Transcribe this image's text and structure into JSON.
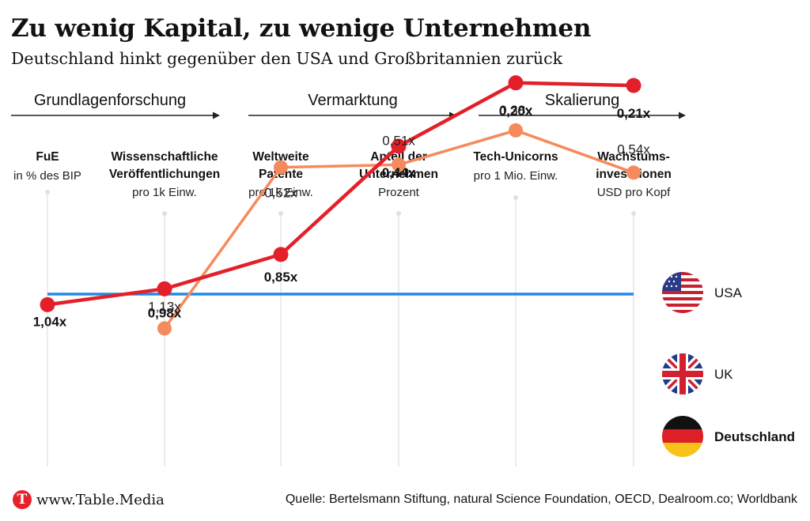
{
  "header": {
    "title": "Zu wenig Kapital, zu wenige Unternehmen",
    "subtitle": "Deutschland hinkt gegenüber den USA und Großbritannien zurück"
  },
  "stages": [
    "Grundlagenforschung",
    "Vermarktung",
    "Skalierung"
  ],
  "chart_data": {
    "type": "line",
    "title": "Zu wenig Kapital, zu wenige Unternehmen",
    "subtitle": "Deutschland hinkt gegenüber den USA und Großbritannien zurück",
    "categories": [
      {
        "name": "FuE",
        "unit": "in % des BIP"
      },
      {
        "name": "Wissenschaftliche Veröffentlichungen",
        "name_lines": [
          "Wissenschaftliche",
          "Veröffentlichungen"
        ],
        "unit": "pro 1k Einw."
      },
      {
        "name": "Weltweite Patente",
        "name_lines": [
          "Weltweite",
          "Patente"
        ],
        "unit": "pro 1k Einw."
      },
      {
        "name": "Anteil der Unternehmen",
        "name_lines": [
          "Anteil der",
          "Unternehmen"
        ],
        "unit": "Prozent"
      },
      {
        "name": "Tech-Unicorns",
        "unit": "pro 1 Mio. Einw."
      },
      {
        "name": "Wachstums-investitionen",
        "name_lines": [
          "Wachstums-",
          "investitionen"
        ],
        "unit": "USD pro Kopf"
      }
    ],
    "baseline": "USA = 1",
    "series": [
      {
        "name": "USA",
        "color": "#2189e6",
        "values": [
          1,
          1,
          1,
          1,
          1,
          1
        ],
        "labels": [
          "",
          "",
          "",
          "",
          "",
          ""
        ]
      },
      {
        "name": "UK",
        "color": "#f58b5c",
        "values": [
          null,
          1.13,
          0.52,
          0.51,
          0.38,
          0.54
        ],
        "labels": [
          "",
          "1,13x",
          "0,52x",
          "0,51x",
          "0,38x",
          "0,54x"
        ]
      },
      {
        "name": "Deutschland",
        "color": "#e3202a",
        "values": [
          1.04,
          0.98,
          0.85,
          0.44,
          0.2,
          0.21
        ],
        "labels": [
          "1,04x",
          "0,98x",
          "0,85x",
          "0,44x",
          "0,20x",
          "0,21x"
        ]
      }
    ],
    "ylim": [
      0,
      1.2
    ],
    "legend": "right"
  },
  "legend": {
    "usa": {
      "label": "USA",
      "flag": "us-flag-icon"
    },
    "uk": {
      "label": "UK",
      "flag": "uk-flag-icon"
    },
    "de": {
      "label": "Deutschland",
      "flag": "germany-flag-icon"
    }
  },
  "footer": {
    "brand_letter": "T",
    "brand": "www.Table.Media",
    "source": "Quelle: Bertelsmann Stiftung, natural Science Foundation, OECD, Dealroom.co; Worldbank"
  }
}
